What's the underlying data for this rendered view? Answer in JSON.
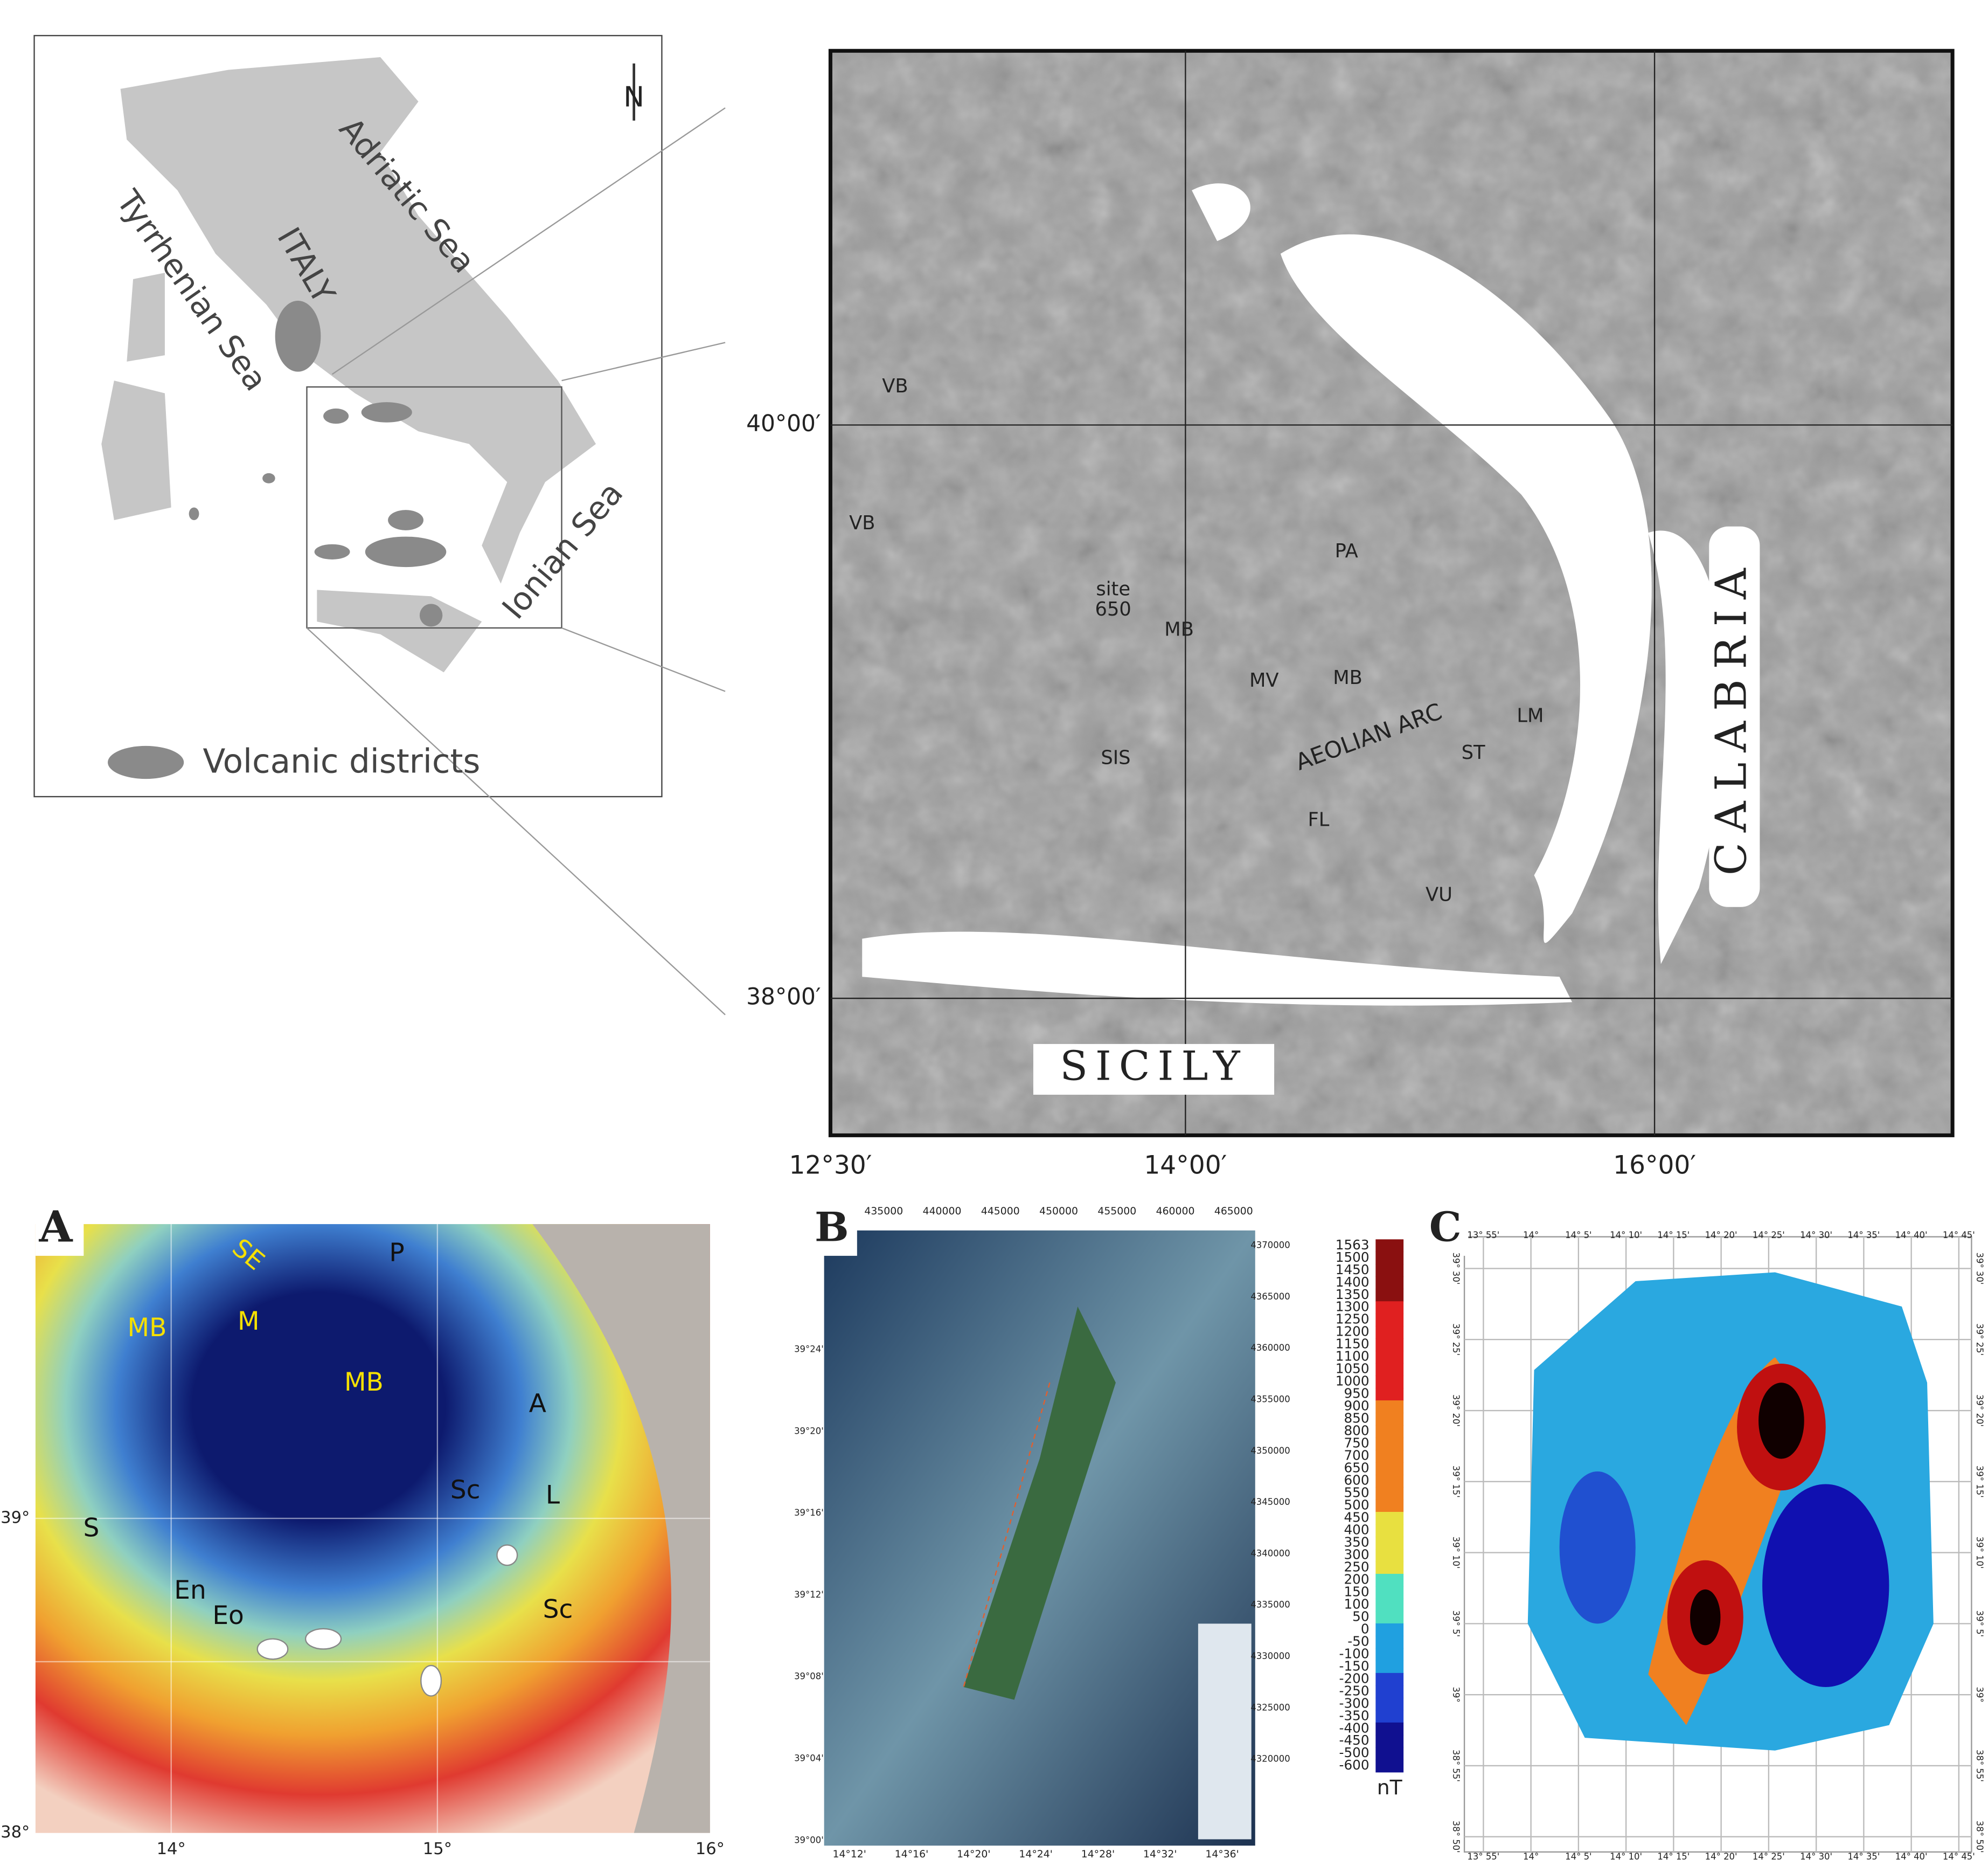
{
  "inset": {
    "north": "N",
    "labels": [
      "Adriatic Sea",
      "ITALY",
      "Tyrrhenian Sea",
      "Ionian Sea"
    ],
    "legend": "Volcanic districts"
  },
  "main_map": {
    "labels": [
      "VB",
      "VB",
      "PA",
      "site",
      "650",
      "MB",
      "MV",
      "MB",
      "LM",
      "ST",
      "AEOLIAN ARC",
      "SIS",
      "FL",
      "VU",
      "CALABRIA",
      "SICILY"
    ],
    "lat_labels": [
      "40°00′",
      "38°00′"
    ],
    "lon_labels": [
      "12°30′",
      "14°00′",
      "16°00′"
    ]
  },
  "panel_a": {
    "letter": "A",
    "labels": [
      "SE",
      "P",
      "MB",
      "M",
      "MB",
      "A",
      "Sc",
      "L",
      "S",
      "En",
      "Eo",
      "Sc"
    ],
    "lat_labels": [
      "39°",
      "38°"
    ],
    "lon_labels": [
      "14°",
      "15°",
      "16°"
    ]
  },
  "panel_b": {
    "letter": "B",
    "x_labels": [
      "435000",
      "440000",
      "445000",
      "450000",
      "455000",
      "460000",
      "465000"
    ],
    "y_labels": [
      "4370000",
      "4365000",
      "4360000",
      "4355000",
      "4350000",
      "4345000",
      "4340000",
      "4335000",
      "4330000",
      "4325000",
      "4320000"
    ],
    "lat_labels": [
      "39°24'",
      "39°20'",
      "39°16'",
      "39°12'",
      "39°08'",
      "39°04'",
      "39°00'"
    ],
    "lon_labels": [
      "14°12'",
      "14°16'",
      "14°20'",
      "14°24'",
      "14°28'",
      "14°32'",
      "14°36'"
    ]
  },
  "panel_c": {
    "letter": "C",
    "unit": "nT",
    "colorbar": [
      1563,
      1500,
      1450,
      1400,
      1350,
      1300,
      1250,
      1200,
      1150,
      1100,
      1050,
      1000,
      950,
      900,
      850,
      800,
      750,
      700,
      650,
      600,
      550,
      500,
      450,
      400,
      350,
      300,
      250,
      200,
      150,
      100,
      50,
      0,
      -50,
      -100,
      -150,
      -200,
      -250,
      -300,
      -350,
      -400,
      -450,
      -500,
      -600
    ],
    "lon_labels": [
      "13° 55'",
      "14°",
      "14° 5'",
      "14° 10'",
      "14° 15'",
      "14° 20'",
      "14° 25'",
      "14° 30'",
      "14° 35'",
      "14° 40'",
      "14° 45'"
    ],
    "lat_labels": [
      "39° 30'",
      "39° 25'",
      "39° 20'",
      "39° 15'",
      "39° 10'",
      "39° 5'",
      "39°",
      "38° 55'",
      "38° 50'"
    ]
  }
}
